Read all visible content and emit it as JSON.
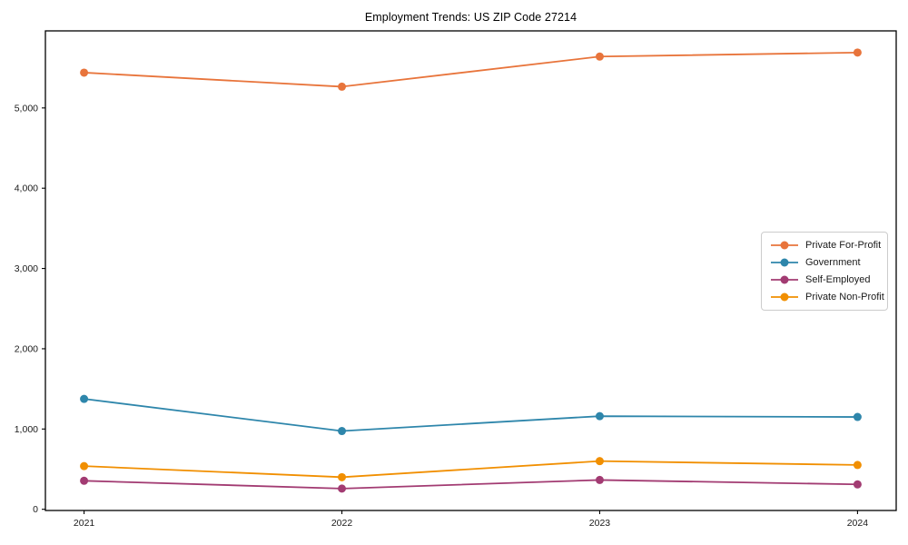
{
  "window": {
    "background_color": "#ffffff"
  },
  "chart_data": {
    "type": "line",
    "title": "Employment Trends: US ZIP Code 27214",
    "categories": [
      "2021",
      "2022",
      "2023",
      "2024"
    ],
    "series": [
      {
        "name": "Private For-Profit",
        "color": "#E8743B",
        "values": [
          5440,
          5265,
          5640,
          5690
        ]
      },
      {
        "name": "Government",
        "color": "#2E86AB",
        "values": [
          1375,
          975,
          1160,
          1150
        ]
      },
      {
        "name": "Self-Employed",
        "color": "#A23B72",
        "values": [
          355,
          258,
          365,
          310
        ]
      },
      {
        "name": "Private Non-Profit",
        "color": "#F18F01",
        "values": [
          538,
          400,
          600,
          552
        ]
      }
    ],
    "xlabel": "",
    "ylabel": "",
    "yticks": [
      0,
      1000,
      2000,
      3000,
      4000,
      5000
    ],
    "ytick_labels": [
      "0",
      "1,000",
      "2,000",
      "3,000",
      "4,000",
      "5,000"
    ],
    "ylim": [
      -15,
      5960
    ],
    "xlim": [
      -0.15,
      3.15
    ],
    "grid": false,
    "legend_position": "center-right",
    "marker": "circle",
    "axis_color": "#000000",
    "text_color": "#1a1a1a",
    "legend_border_color": "#cccccc"
  }
}
